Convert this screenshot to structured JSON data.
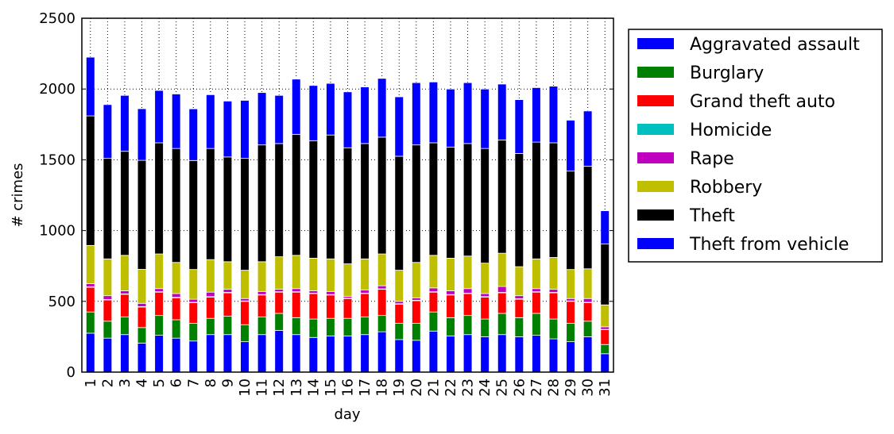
{
  "chart_data": {
    "type": "stacked-bar",
    "xlabel": "day",
    "ylabel": "# crimes",
    "categories": [
      "1",
      "2",
      "3",
      "4",
      "5",
      "6",
      "7",
      "8",
      "9",
      "10",
      "11",
      "12",
      "13",
      "14",
      "15",
      "16",
      "17",
      "18",
      "19",
      "20",
      "21",
      "22",
      "23",
      "24",
      "25",
      "26",
      "27",
      "28",
      "29",
      "30",
      "31"
    ],
    "ylim": [
      0,
      2500
    ],
    "yticks": [
      0,
      500,
      1000,
      1500,
      2000,
      2500
    ],
    "grid": true,
    "legend": "outside-right",
    "series": [
      {
        "name": "Aggravated assault",
        "color": "#0000ff",
        "values": [
          275,
          240,
          265,
          205,
          260,
          240,
          220,
          265,
          265,
          215,
          265,
          295,
          265,
          245,
          255,
          255,
          265,
          285,
          230,
          225,
          290,
          255,
          265,
          250,
          265,
          250,
          260,
          235,
          215,
          250,
          130
        ]
      },
      {
        "name": "Burglary",
        "color": "#008000",
        "values": [
          150,
          120,
          125,
          110,
          140,
          130,
          125,
          115,
          130,
          120,
          125,
          120,
          120,
          130,
          125,
          125,
          125,
          115,
          115,
          120,
          135,
          130,
          135,
          125,
          150,
          135,
          155,
          140,
          130,
          110,
          65
        ]
      },
      {
        "name": "Grand theft auto",
        "color": "#ff0000",
        "values": [
          175,
          150,
          160,
          145,
          165,
          155,
          145,
          150,
          165,
          165,
          155,
          150,
          180,
          180,
          165,
          140,
          165,
          185,
          135,
          160,
          140,
          160,
          155,
          155,
          145,
          130,
          150,
          185,
          155,
          130,
          105
        ]
      },
      {
        "name": "Homicide",
        "color": "#00bfbf",
        "values": [
          3,
          3,
          3,
          3,
          3,
          3,
          3,
          3,
          3,
          3,
          3,
          3,
          3,
          3,
          3,
          3,
          3,
          3,
          3,
          3,
          3,
          3,
          3,
          3,
          3,
          3,
          3,
          3,
          3,
          3,
          2
        ]
      },
      {
        "name": "Rape",
        "color": "#bf00bf",
        "values": [
          22,
          27,
          22,
          23,
          22,
          27,
          22,
          32,
          22,
          17,
          22,
          17,
          22,
          17,
          22,
          12,
          22,
          22,
          17,
          17,
          27,
          27,
          32,
          22,
          42,
          22,
          22,
          22,
          17,
          27,
          18
        ]
      },
      {
        "name": "Robbery",
        "color": "#bfbf00",
        "values": [
          270,
          260,
          250,
          240,
          245,
          220,
          210,
          230,
          195,
          200,
          210,
          230,
          235,
          230,
          230,
          230,
          220,
          225,
          220,
          250,
          230,
          230,
          230,
          215,
          235,
          205,
          210,
          225,
          205,
          210,
          155
        ]
      },
      {
        "name": "Theft",
        "color": "#000000",
        "values": [
          915,
          710,
          735,
          770,
          785,
          805,
          770,
          785,
          740,
          790,
          825,
          800,
          855,
          830,
          875,
          820,
          815,
          825,
          805,
          830,
          795,
          785,
          795,
          810,
          800,
          800,
          825,
          810,
          695,
          725,
          430
        ]
      },
      {
        "name": "Theft from vehicle",
        "color": "#0000ff",
        "values": [
          415,
          380,
          395,
          365,
          370,
          385,
          365,
          380,
          395,
          410,
          370,
          340,
          390,
          390,
          365,
          395,
          400,
          415,
          420,
          440,
          430,
          410,
          430,
          420,
          395,
          380,
          385,
          400,
          360,
          390,
          235
        ]
      }
    ]
  }
}
